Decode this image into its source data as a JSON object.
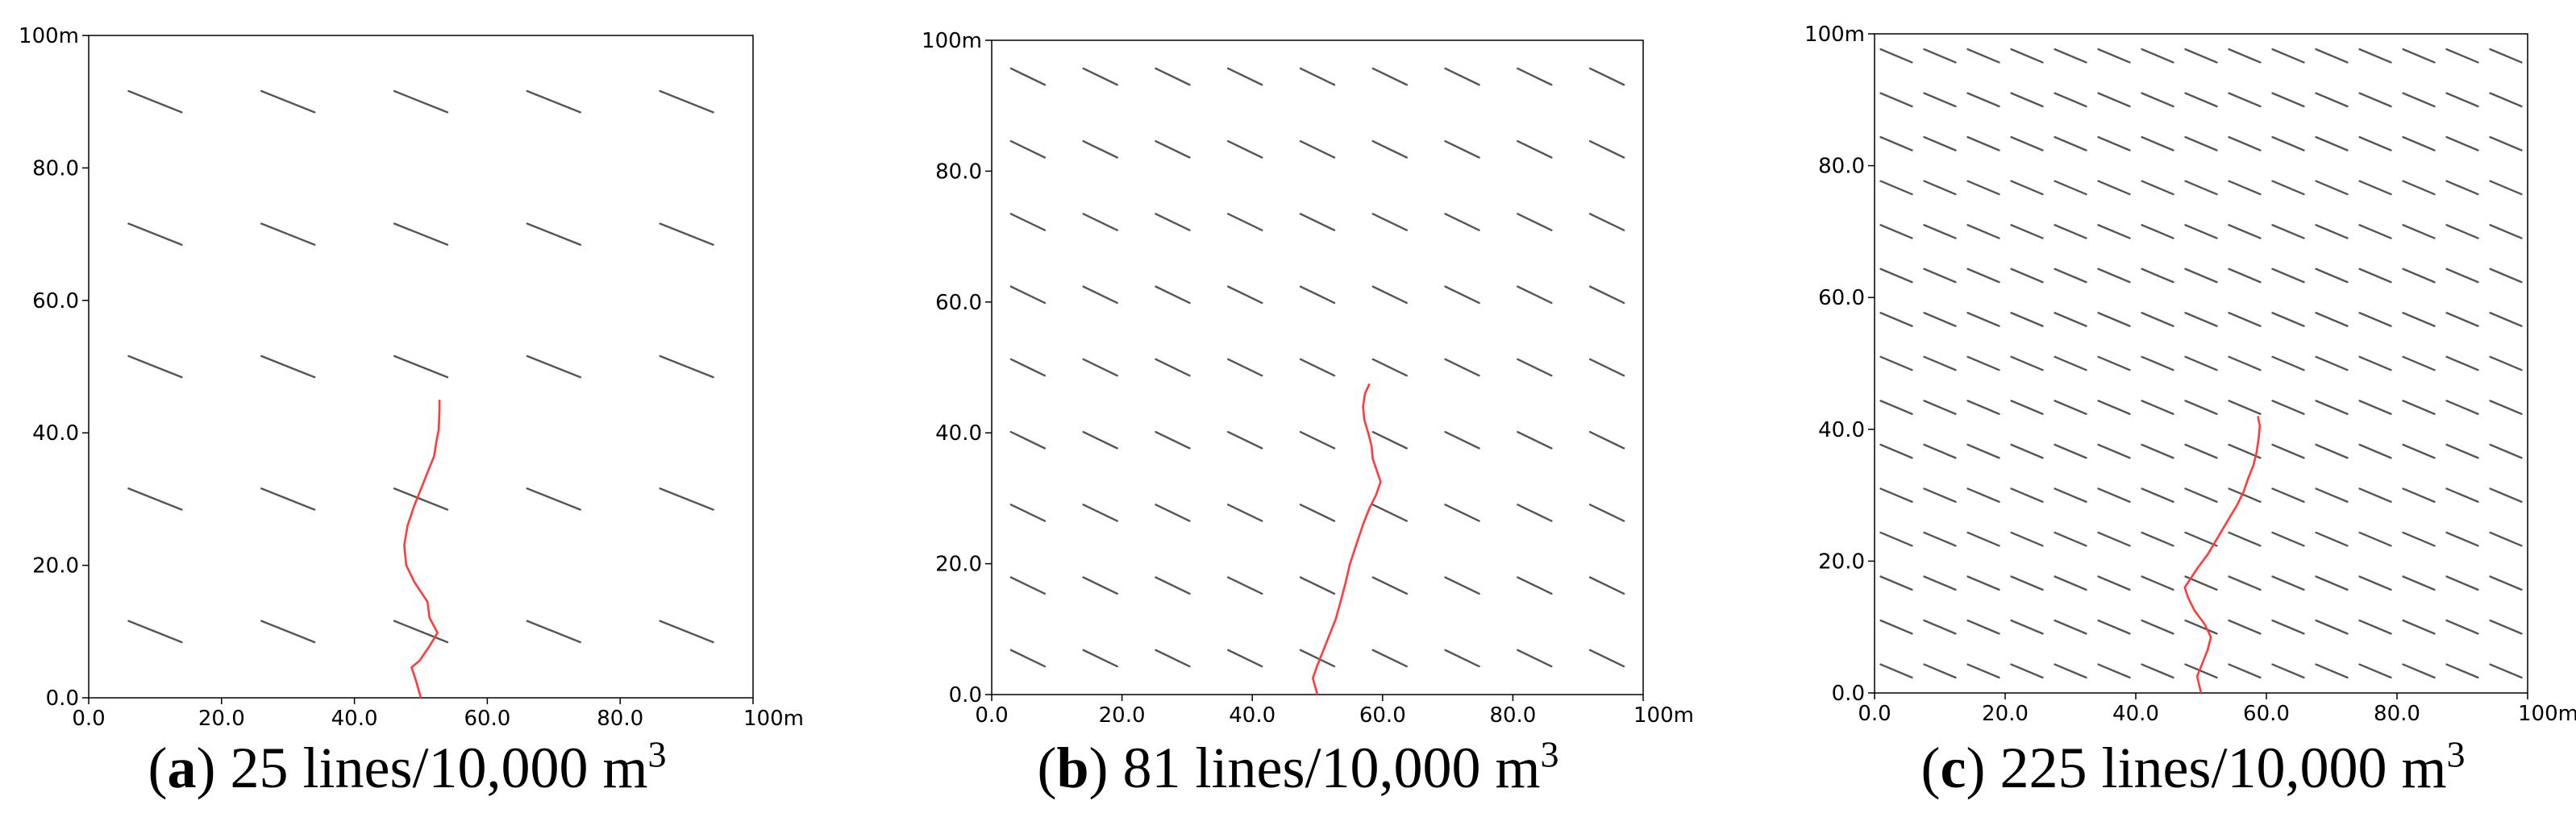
{
  "panels": [
    {
      "id": "a",
      "caption_letter": "a",
      "caption_text": " 25 lines/10,000 m",
      "caption_sup": "3",
      "grid_n": 5,
      "x_ticks": [
        "0.0",
        "20.0",
        "40.0",
        "60.0",
        "80.0",
        "100m"
      ],
      "y_ticks": [
        "0.0",
        "20.0",
        "40.0",
        "60.0",
        "80.0",
        "100m"
      ],
      "axis_range": [
        0,
        100
      ],
      "line_color": "#555555",
      "crack_color": "#ff3b3b",
      "crack_path": [
        [
          50.0,
          0
        ],
        [
          49.3,
          2.5
        ],
        [
          48.6,
          4.6
        ],
        [
          49.8,
          5.6
        ],
        [
          51.3,
          7.8
        ],
        [
          52.5,
          9.8
        ],
        [
          51.3,
          12.1
        ],
        [
          51.0,
          14.5
        ],
        [
          49.0,
          17.5
        ],
        [
          47.8,
          20.0
        ],
        [
          47.5,
          23.0
        ],
        [
          48.0,
          26.0
        ],
        [
          49.0,
          29.0
        ],
        [
          50.0,
          31.5
        ],
        [
          51.0,
          34.0
        ],
        [
          52.0,
          36.5
        ],
        [
          52.3,
          38.5
        ],
        [
          52.7,
          40.5
        ],
        [
          52.8,
          43.5
        ],
        [
          52.8,
          45.0
        ]
      ]
    },
    {
      "id": "b",
      "caption_letter": "b",
      "caption_text": " 81 lines/10,000 m",
      "caption_sup": "3",
      "grid_n": 9,
      "x_ticks": [
        "0.0",
        "20.0",
        "40.0",
        "60.0",
        "80.0",
        "100m"
      ],
      "y_ticks": [
        "0.0",
        "20.0",
        "40.0",
        "60.0",
        "80.0",
        "100m"
      ],
      "axis_range": [
        0,
        100
      ],
      "line_color": "#555555",
      "crack_color": "#ff3b3b",
      "crack_path": [
        [
          50.0,
          0
        ],
        [
          49.3,
          2.5
        ],
        [
          50.0,
          4.5
        ],
        [
          51.0,
          7.0
        ],
        [
          52.0,
          9.5
        ],
        [
          52.8,
          11.5
        ],
        [
          53.5,
          14.0
        ],
        [
          54.3,
          17.0
        ],
        [
          55.0,
          20.0
        ],
        [
          56.0,
          23.0
        ],
        [
          57.0,
          26.0
        ],
        [
          58.0,
          28.5
        ],
        [
          59.0,
          30.5
        ],
        [
          59.7,
          32.5
        ],
        [
          59.2,
          34.0
        ],
        [
          58.5,
          36.0
        ],
        [
          58.3,
          38.0
        ],
        [
          57.8,
          40.0
        ],
        [
          57.2,
          42.0
        ],
        [
          57.0,
          44.0
        ],
        [
          57.3,
          46.0
        ],
        [
          58.0,
          47.5
        ]
      ]
    },
    {
      "id": "c",
      "caption_letter": "c",
      "caption_text": " 225 lines/10,000 m",
      "caption_sup": "3",
      "grid_n": 15,
      "x_ticks": [
        "0.0",
        "20.0",
        "40.0",
        "60.0",
        "80.0",
        "100m"
      ],
      "y_ticks": [
        "0.0",
        "20.0",
        "40.0",
        "60.0",
        "80.0",
        "100m"
      ],
      "axis_range": [
        0,
        100
      ],
      "line_color": "#555555",
      "crack_color": "#ff3b3b",
      "crack_path": [
        [
          50.0,
          0
        ],
        [
          49.4,
          2.5
        ],
        [
          50.2,
          4.5
        ],
        [
          51.0,
          6.5
        ],
        [
          51.5,
          8.5
        ],
        [
          50.5,
          10.5
        ],
        [
          49.0,
          12.5
        ],
        [
          48.0,
          14.5
        ],
        [
          47.5,
          16.0
        ],
        [
          48.5,
          17.5
        ],
        [
          49.5,
          19.0
        ],
        [
          51.0,
          21.0
        ],
        [
          52.5,
          23.5
        ],
        [
          54.0,
          26.0
        ],
        [
          55.5,
          28.5
        ],
        [
          56.5,
          30.5
        ],
        [
          57.2,
          32.5
        ],
        [
          58.0,
          34.5
        ],
        [
          58.5,
          36.5
        ],
        [
          58.8,
          38.5
        ],
        [
          59.0,
          40.5
        ],
        [
          58.7,
          42.0
        ]
      ]
    }
  ]
}
